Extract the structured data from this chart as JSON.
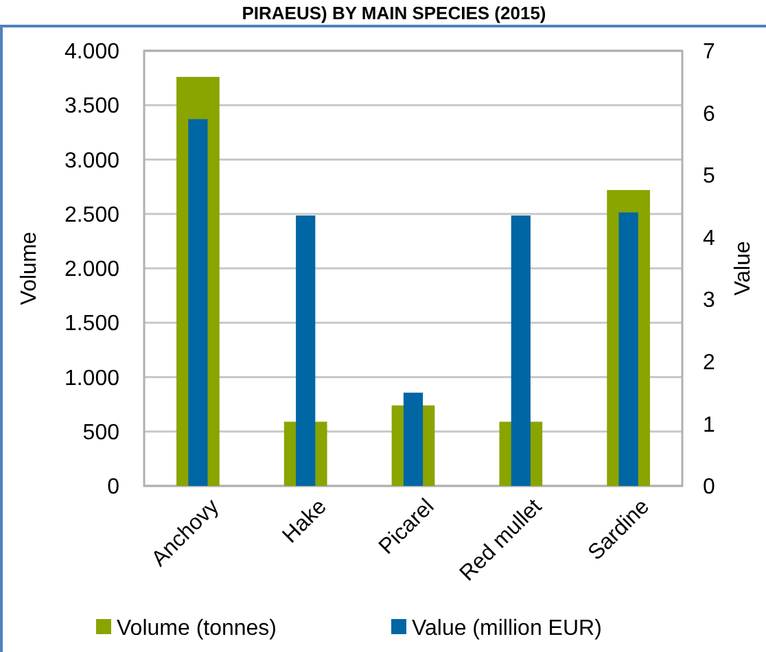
{
  "chart_data": {
    "type": "bar",
    "title": "PIRAEUS) BY MAIN SPECIES (2015)",
    "ylabel": "Volume",
    "y2label": "Value",
    "categories": [
      "Anchovy",
      "Hake",
      "Picarel",
      "Red mullet",
      "Sardine"
    ],
    "series": [
      {
        "name": "Volume (tonnes)",
        "color": "#8aa400",
        "values": [
          3760,
          590,
          740,
          590,
          2720
        ]
      },
      {
        "name": "Value (million EUR)",
        "color": "#0066a4",
        "values": [
          5.9,
          4.35,
          1.5,
          4.35,
          4.4
        ],
        "axis": "y2"
      }
    ],
    "ylim": [
      0,
      4000
    ],
    "yticks": [
      {
        "value": 0,
        "label": "0"
      },
      {
        "value": 500,
        "label": "500"
      },
      {
        "value": 1000,
        "label": "1.000"
      },
      {
        "value": 1500,
        "label": "1.500"
      },
      {
        "value": 2000,
        "label": "2.000"
      },
      {
        "value": 2500,
        "label": "2.500"
      },
      {
        "value": 3000,
        "label": "3.000"
      },
      {
        "value": 3500,
        "label": "3.500"
      },
      {
        "value": 4000,
        "label": "4.000"
      }
    ],
    "y2lim": [
      0,
      7
    ],
    "y2ticks": [
      0,
      1,
      2,
      3,
      4,
      5,
      6,
      7
    ],
    "grid": "y",
    "legend": "bottom"
  }
}
